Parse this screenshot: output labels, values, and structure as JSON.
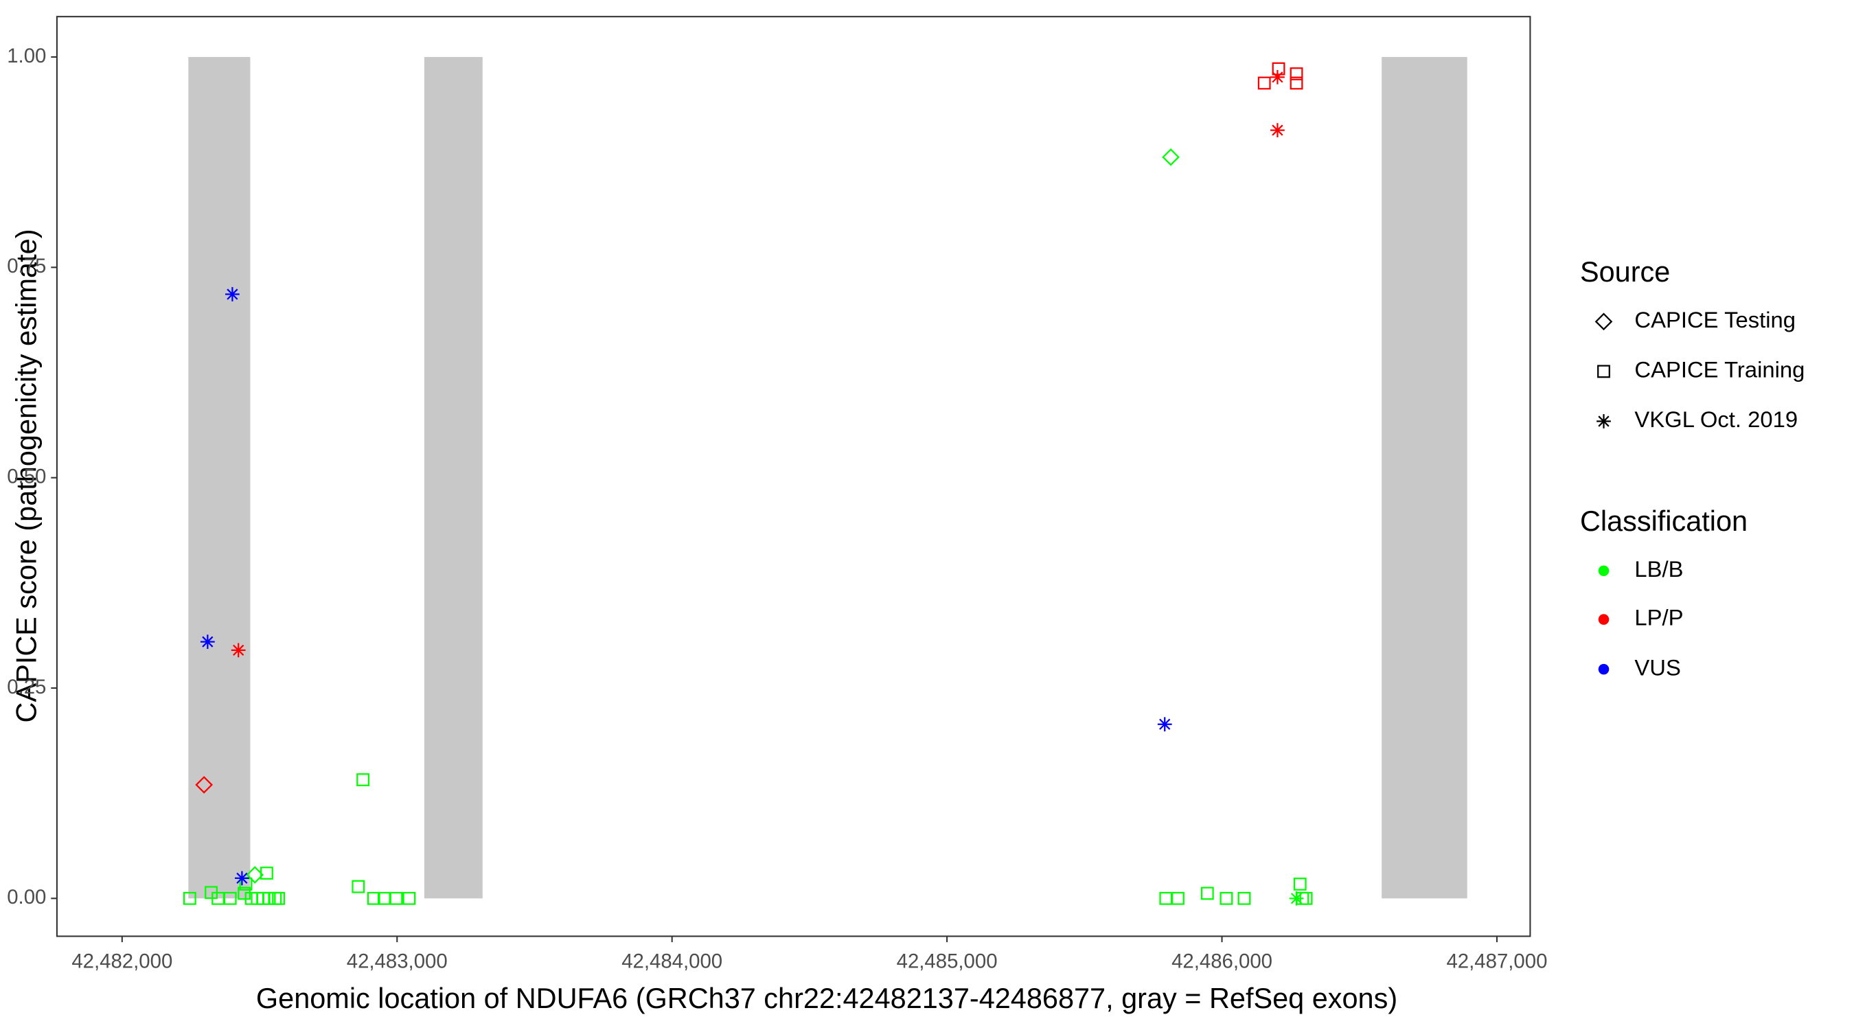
{
  "chart_data": {
    "type": "scatter",
    "xlabel": "Genomic location of NDUFA6 (GRCh37 chr22:42482137-42486877, gray = RefSeq exons)",
    "ylabel": "CAPICE score (pathogenicity estimate)",
    "xlim": [
      42481763,
      42487121
    ],
    "ylim": [
      -0.045,
      1.048
    ],
    "xticks": [
      {
        "value": 42482000,
        "label": "42,482,000"
      },
      {
        "value": 42483000,
        "label": "42,483,000"
      },
      {
        "value": 42484000,
        "label": "42,484,000"
      },
      {
        "value": 42485000,
        "label": "42,485,000"
      },
      {
        "value": 42486000,
        "label": "42,486,000"
      },
      {
        "value": 42487000,
        "label": "42,487,000"
      }
    ],
    "yticks": [
      {
        "value": 0,
        "label": "0.00"
      },
      0.25,
      {
        "value": 0.5,
        "label": "0.50"
      },
      0.75,
      {
        "value": 1,
        "label": "1.00"
      }
    ],
    "exon_color": "#c8c8c8",
    "exon_y": [
      0,
      1
    ],
    "exons": [
      [
        42482241,
        42482466
      ],
      [
        42483099,
        42483311
      ],
      [
        42486581,
        42486892
      ]
    ],
    "legends": [
      {
        "title": "Source",
        "entries": [
          {
            "label": "CAPICE Testing",
            "shape": "diamond"
          },
          {
            "label": "CAPICE Training",
            "shape": "square"
          },
          {
            "label": "VKGL Oct. 2019",
            "shape": "asterisk"
          }
        ]
      },
      {
        "title": "Classification",
        "entries": [
          {
            "label": "LB/B",
            "color": "#00ff00"
          },
          {
            "label": "LP/P",
            "color": "#ff0000"
          },
          {
            "label": "VUS",
            "color": "#0000ff"
          }
        ]
      }
    ],
    "points": [
      {
        "x": 42482246,
        "y": 0,
        "source": "CAPICE Training",
        "classification": "LB/B"
      },
      {
        "x": 42482324,
        "y": 0.007,
        "source": "CAPICE Training",
        "classification": "LB/B"
      },
      {
        "x": 42482349,
        "y": 0,
        "source": "CAPICE Training",
        "classification": "LB/B"
      },
      {
        "x": 42482393,
        "y": 0,
        "source": "CAPICE Training",
        "classification": "LB/B"
      },
      {
        "x": 42482444,
        "y": 0.006,
        "source": "CAPICE Training",
        "classification": "LB/B"
      },
      {
        "x": 42482470,
        "y": 0,
        "source": "CAPICE Training",
        "classification": "LB/B"
      },
      {
        "x": 42482492,
        "y": 0,
        "source": "CAPICE Training",
        "classification": "LB/B"
      },
      {
        "x": 42482513,
        "y": 0,
        "source": "CAPICE Training",
        "classification": "LB/B"
      },
      {
        "x": 42482535,
        "y": 0,
        "source": "CAPICE Training",
        "classification": "LB/B"
      },
      {
        "x": 42482557,
        "y": 0,
        "source": "CAPICE Training",
        "classification": "LB/B"
      },
      {
        "x": 42482569,
        "y": 0,
        "source": "CAPICE Training",
        "classification": "LB/B"
      },
      {
        "x": 42482526,
        "y": 0.03,
        "source": "CAPICE Training",
        "classification": "LB/B"
      },
      {
        "x": 42482450,
        "y": 0.017,
        "source": "CAPICE Training",
        "classification": "LB/B"
      },
      {
        "x": 42482483,
        "y": 0.028,
        "source": "CAPICE Testing",
        "classification": "LB/B"
      },
      {
        "x": 42482436,
        "y": 0.024,
        "source": "VKGL Oct. 2019",
        "classification": "VUS"
      },
      {
        "x": 42482401,
        "y": 0.718,
        "source": "VKGL Oct. 2019",
        "classification": "VUS"
      },
      {
        "x": 42482311,
        "y": 0.305,
        "source": "VKGL Oct. 2019",
        "classification": "VUS"
      },
      {
        "x": 42482423,
        "y": 0.295,
        "source": "VKGL Oct. 2019",
        "classification": "LP/P"
      },
      {
        "x": 42482298,
        "y": 0.135,
        "source": "CAPICE Testing",
        "classification": "LP/P"
      },
      {
        "x": 42482859,
        "y": 0.014,
        "source": "CAPICE Training",
        "classification": "LB/B"
      },
      {
        "x": 42482876,
        "y": 0.141,
        "source": "CAPICE Training",
        "classification": "LB/B"
      },
      {
        "x": 42482915,
        "y": 0,
        "source": "CAPICE Training",
        "classification": "LB/B"
      },
      {
        "x": 42482953,
        "y": 0,
        "source": "CAPICE Training",
        "classification": "LB/B"
      },
      {
        "x": 42482997,
        "y": 0,
        "source": "CAPICE Training",
        "classification": "LB/B"
      },
      {
        "x": 42483044,
        "y": 0,
        "source": "CAPICE Training",
        "classification": "LB/B"
      },
      {
        "x": 42485796,
        "y": 0,
        "source": "CAPICE Training",
        "classification": "LB/B"
      },
      {
        "x": 42485840,
        "y": 0,
        "source": "CAPICE Training",
        "classification": "LB/B"
      },
      {
        "x": 42485947,
        "y": 0.006,
        "source": "CAPICE Training",
        "classification": "LB/B"
      },
      {
        "x": 42486016,
        "y": 0,
        "source": "CAPICE Training",
        "classification": "LB/B"
      },
      {
        "x": 42486081,
        "y": 0,
        "source": "CAPICE Training",
        "classification": "LB/B"
      },
      {
        "x": 42486284,
        "y": 0.017,
        "source": "CAPICE Training",
        "classification": "LB/B"
      },
      {
        "x": 42486293,
        "y": 0,
        "source": "CAPICE Training",
        "classification": "LB/B"
      },
      {
        "x": 42486306,
        "y": 0,
        "source": "CAPICE Training",
        "classification": "LB/B"
      },
      {
        "x": 42486271,
        "y": 0,
        "source": "VKGL Oct. 2019",
        "classification": "LB/B"
      },
      {
        "x": 42485814,
        "y": 0.881,
        "source": "CAPICE Testing",
        "classification": "LB/B"
      },
      {
        "x": 42485792,
        "y": 0.207,
        "source": "VKGL Oct. 2019",
        "classification": "VUS"
      },
      {
        "x": 42486154,
        "y": 0.969,
        "source": "CAPICE Training",
        "classification": "LP/P"
      },
      {
        "x": 42486206,
        "y": 0.986,
        "source": "CAPICE Training",
        "classification": "LP/P"
      },
      {
        "x": 42486271,
        "y": 0.98,
        "source": "CAPICE Training",
        "classification": "LP/P"
      },
      {
        "x": 42486271,
        "y": 0.969,
        "source": "CAPICE Training",
        "classification": "LP/P"
      },
      {
        "x": 42486202,
        "y": 0.976,
        "source": "VKGL Oct. 2019",
        "classification": "LP/P"
      },
      {
        "x": 42486202,
        "y": 0.913,
        "source": "VKGL Oct. 2019",
        "classification": "LP/P"
      }
    ]
  }
}
